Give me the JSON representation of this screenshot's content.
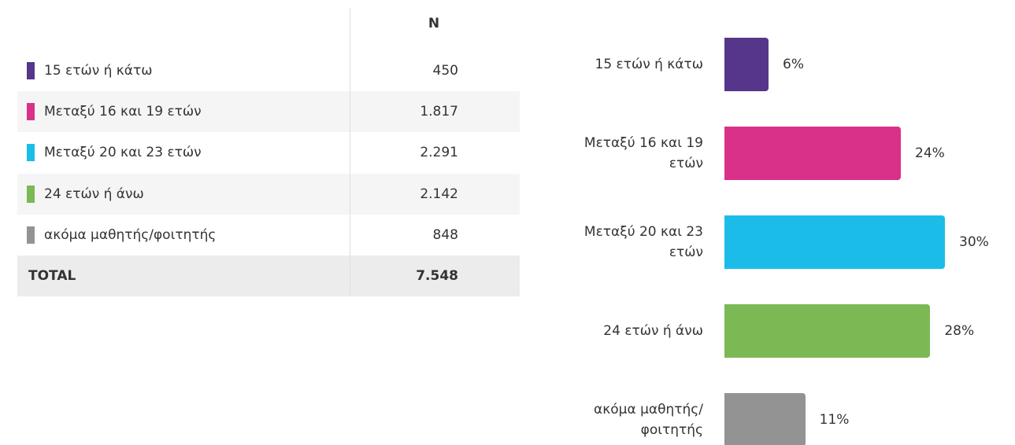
{
  "table": {
    "header": "N",
    "rows": [
      {
        "label": "15 ετών ή κάτω",
        "value": "450",
        "color": "#55368a"
      },
      {
        "label": "Μεταξύ 16 και 19 ετών",
        "value": "1.817",
        "color": "#d9318a"
      },
      {
        "label": "Μεταξύ 20 και 23 ετών",
        "value": "2.291",
        "color": "#1bbde8"
      },
      {
        "label": "24 ετών ή άνω",
        "value": "2.142",
        "color": "#7ab954"
      },
      {
        "label": "ακόμα μαθητής/φοιτητής",
        "value": "848",
        "color": "#939393"
      }
    ],
    "total": {
      "label": "TOTAL",
      "value": "7.548"
    }
  },
  "chart_data": {
    "type": "bar",
    "orientation": "horizontal",
    "categories": [
      "15 ετών ή κάτω",
      "Μεταξύ 16 και 19 ετών",
      "Μεταξύ 20 και 23 ετών",
      "24 ετών ή άνω",
      "ακόμα μαθητής/φοιτητής"
    ],
    "values": [
      6,
      24,
      30,
      28,
      11
    ],
    "value_labels": [
      "6%",
      "24%",
      "30%",
      "28%",
      "11%"
    ],
    "colors": [
      "#55368a",
      "#d9318a",
      "#1bbde8",
      "#7ab954",
      "#939393"
    ]
  }
}
